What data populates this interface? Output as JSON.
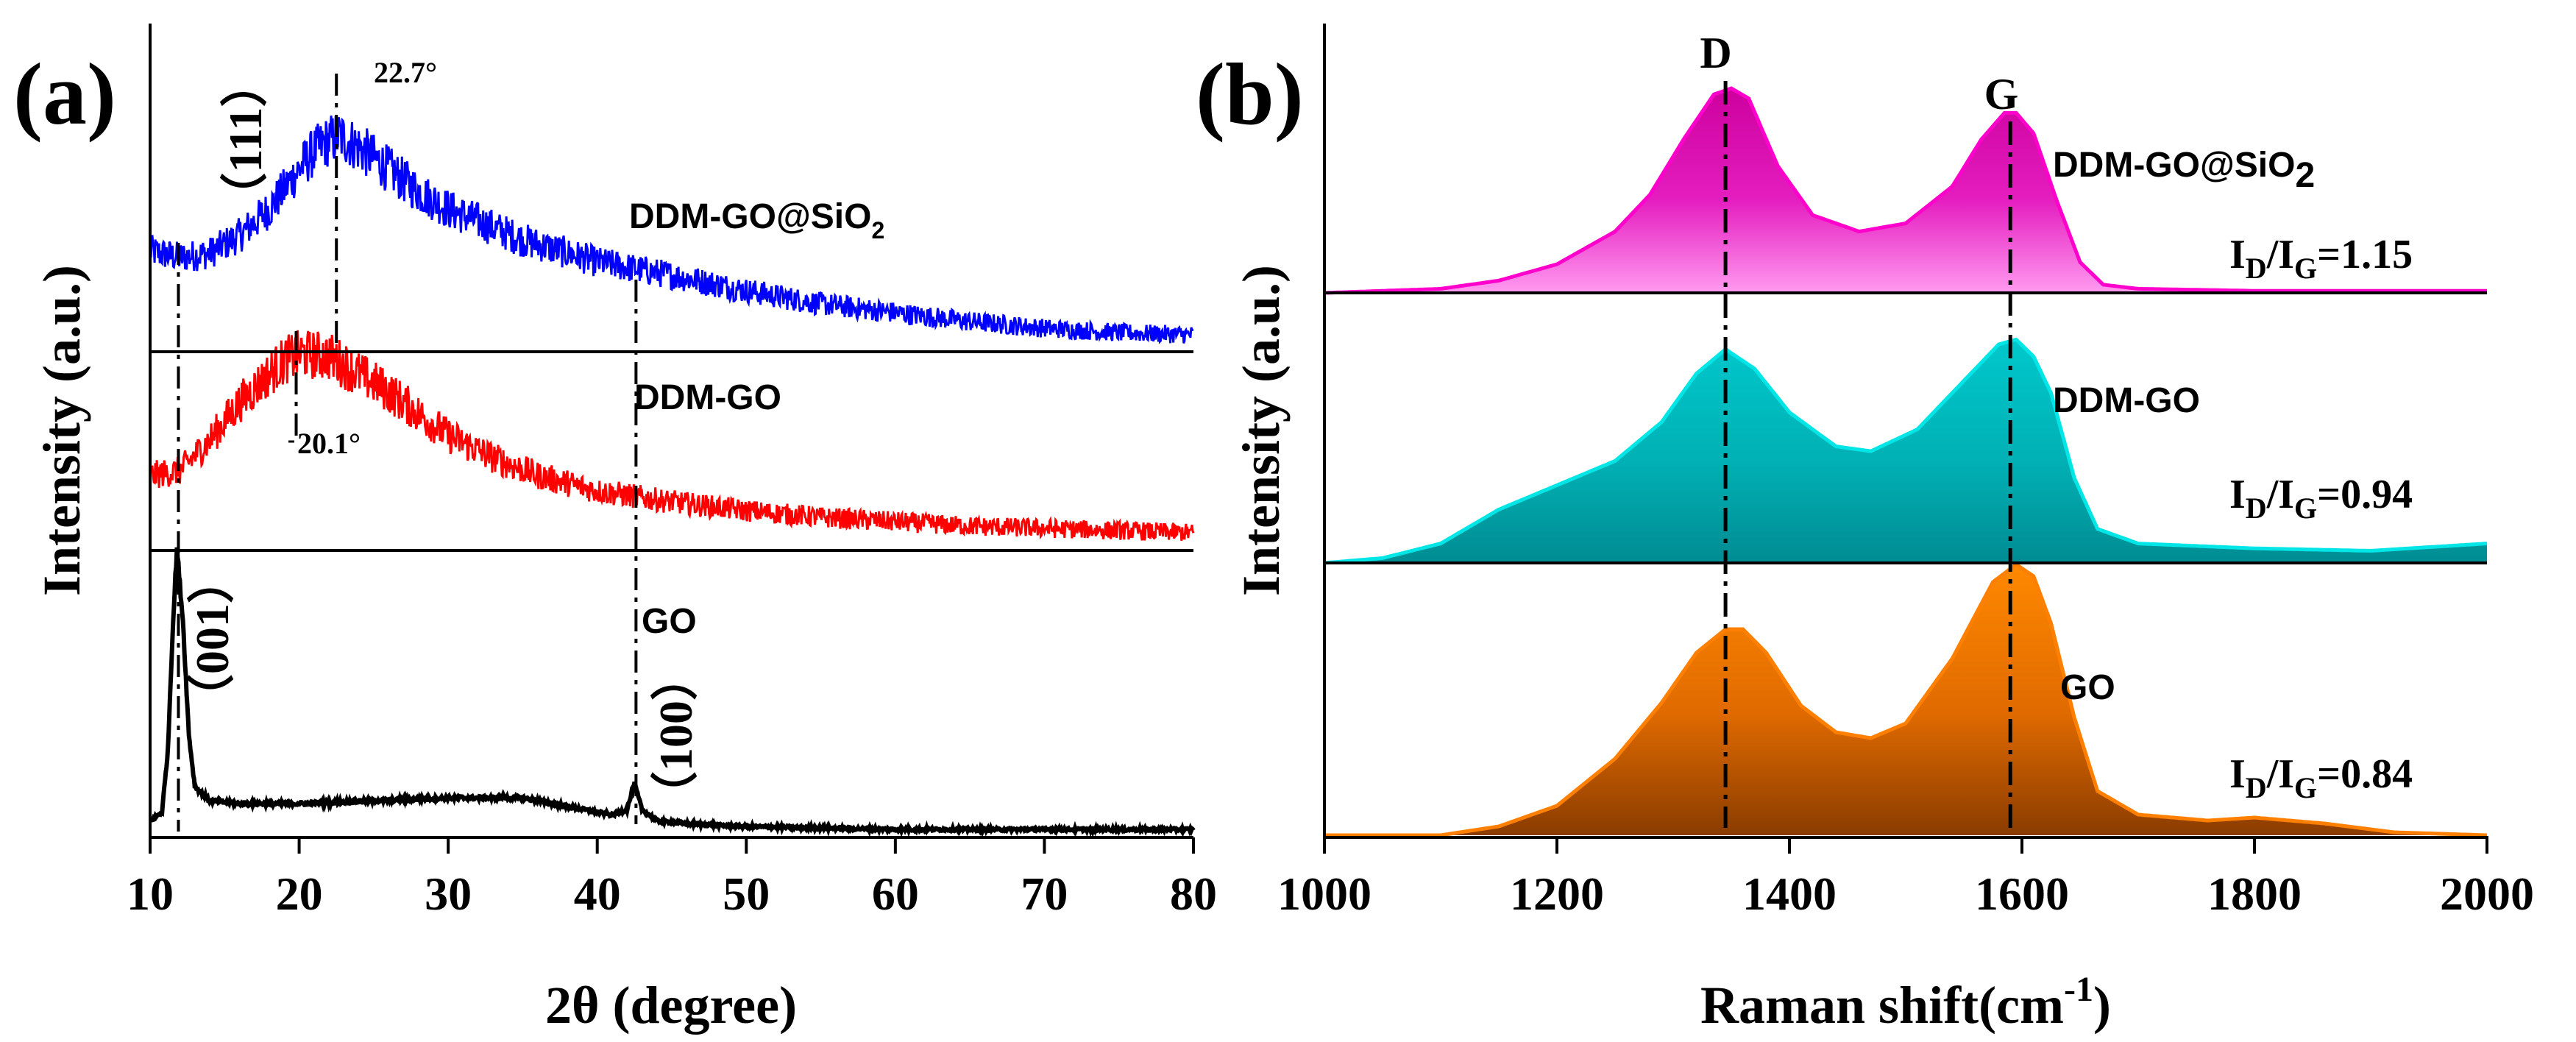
{
  "chart_data": [
    {
      "panel": "(a)",
      "type": "line",
      "xlabel": "2θ (degree)",
      "ylabel": "Intensity (a.u.)",
      "xlim": [
        10,
        80
      ],
      "xticks": [
        10,
        20,
        30,
        40,
        50,
        60,
        70,
        80
      ],
      "series": [
        {
          "name": "DDM-GO@SiO",
          "name_sub": "2",
          "color": "#0000ff",
          "noise": 0.09,
          "x": [
            10,
            12,
            14,
            16,
            18,
            20,
            21,
            22,
            22.7,
            24,
            26,
            28,
            30,
            35,
            40,
            45,
            50,
            55,
            60,
            65,
            70,
            75,
            80
          ],
          "y": [
            0.43,
            0.4,
            0.42,
            0.5,
            0.62,
            0.8,
            0.88,
            0.93,
            0.95,
            0.9,
            0.8,
            0.7,
            0.62,
            0.48,
            0.38,
            0.32,
            0.25,
            0.19,
            0.15,
            0.11,
            0.08,
            0.06,
            0.05
          ]
        },
        {
          "name": "DDM-GO",
          "color": "#ff0000",
          "noise": 0.09,
          "x": [
            10,
            12,
            14,
            16,
            18,
            19,
            20.1,
            22,
            24,
            26,
            28,
            30,
            33,
            36,
            40,
            45,
            50,
            55,
            60,
            65,
            70,
            75,
            80
          ],
          "y": [
            0.32,
            0.34,
            0.48,
            0.65,
            0.78,
            0.84,
            0.87,
            0.86,
            0.78,
            0.7,
            0.6,
            0.5,
            0.4,
            0.32,
            0.25,
            0.2,
            0.16,
            0.13,
            0.11,
            0.09,
            0.08,
            0.07,
            0.06
          ]
        },
        {
          "name": "GO",
          "color": "#000000",
          "noise": 0.012,
          "x": [
            10,
            10.8,
            11.2,
            11.5,
            11.8,
            12.2,
            12.6,
            13,
            14,
            16,
            20,
            25,
            30,
            35,
            38,
            41,
            42,
            42.5,
            43,
            44,
            46,
            50,
            60,
            70,
            80
          ],
          "y": [
            0.05,
            0.08,
            0.3,
            0.7,
            1.0,
            0.75,
            0.35,
            0.17,
            0.12,
            0.11,
            0.11,
            0.12,
            0.13,
            0.13,
            0.1,
            0.07,
            0.09,
            0.18,
            0.09,
            0.05,
            0.04,
            0.03,
            0.02,
            0.02,
            0.02
          ]
        }
      ],
      "annotations": {
        "peak_blue": "22.7°",
        "peak_red": "20.1°",
        "plane_111": "（111）",
        "plane_001": "（001）",
        "plane_100": "（100）"
      },
      "reference_lines_x": [
        11.9,
        22.5,
        19.8,
        42.6
      ]
    },
    {
      "panel": "(b)",
      "type": "area",
      "xlabel": "Raman shift(cm",
      "xlabel_sup": "-1",
      "xlabel_end": ")",
      "ylabel": "Intensity (a.u.)",
      "xlim": [
        1000,
        2000
      ],
      "xticks": [
        1000,
        1200,
        1400,
        1600,
        1800,
        2000
      ],
      "bands": {
        "D": 1345,
        "G": 1590
      },
      "series": [
        {
          "name": "DDM-GO@SiO",
          "name_sub": "2",
          "ratio": "1.15",
          "color": "#ff00cc",
          "x": [
            1000,
            1100,
            1150,
            1200,
            1250,
            1280,
            1310,
            1335,
            1350,
            1365,
            1390,
            1420,
            1460,
            1500,
            1540,
            1565,
            1585,
            1595,
            1610,
            1630,
            1650,
            1670,
            1700,
            1800,
            1900,
            2000
          ],
          "y": [
            0.0,
            0.02,
            0.06,
            0.14,
            0.3,
            0.48,
            0.76,
            0.97,
            1.0,
            0.95,
            0.62,
            0.38,
            0.3,
            0.34,
            0.52,
            0.75,
            0.88,
            0.88,
            0.78,
            0.45,
            0.15,
            0.04,
            0.02,
            0.01,
            0.01,
            0.01
          ]
        },
        {
          "name": "DDM-GO",
          "ratio": "0.94",
          "color": "#00e6e6",
          "x": [
            1000,
            1050,
            1100,
            1150,
            1200,
            1250,
            1290,
            1320,
            1345,
            1370,
            1400,
            1440,
            1470,
            1510,
            1550,
            1580,
            1595,
            1610,
            1625,
            1645,
            1665,
            1700,
            1800,
            1900,
            2000
          ],
          "y": [
            0.0,
            0.02,
            0.08,
            0.22,
            0.32,
            0.42,
            0.58,
            0.78,
            0.88,
            0.8,
            0.62,
            0.48,
            0.46,
            0.55,
            0.75,
            0.9,
            0.92,
            0.85,
            0.7,
            0.35,
            0.14,
            0.08,
            0.06,
            0.05,
            0.08
          ]
        },
        {
          "name": "GO",
          "ratio": "0.84",
          "color": "#ff8000",
          "x": [
            1000,
            1100,
            1150,
            1200,
            1250,
            1290,
            1320,
            1345,
            1360,
            1380,
            1410,
            1440,
            1470,
            1500,
            1540,
            1575,
            1595,
            1610,
            1625,
            1645,
            1665,
            1700,
            1760,
            1800,
            1860,
            1920,
            2000
          ],
          "y": [
            0.0,
            0.0,
            0.03,
            0.1,
            0.26,
            0.45,
            0.62,
            0.7,
            0.7,
            0.62,
            0.44,
            0.35,
            0.33,
            0.38,
            0.6,
            0.86,
            0.92,
            0.88,
            0.72,
            0.4,
            0.15,
            0.07,
            0.05,
            0.06,
            0.04,
            0.01,
            0.0
          ]
        }
      ]
    }
  ]
}
